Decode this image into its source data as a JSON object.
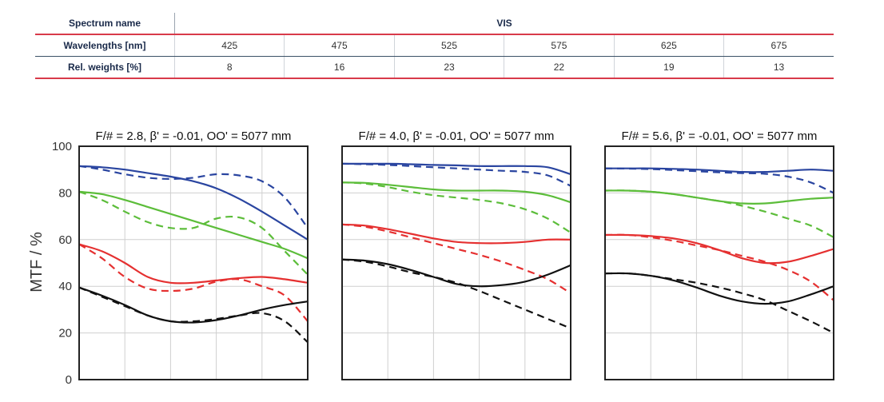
{
  "spectrum_table": {
    "spectrum_name_label": "Spectrum name",
    "spectrum_name_value": "VIS",
    "wavelengths_label": "Wavelengths [nm]",
    "wavelengths": [
      "425",
      "475",
      "525",
      "575",
      "625",
      "675"
    ],
    "weights_label": "Rel. weights [%]",
    "weights": [
      "8",
      "16",
      "23",
      "22",
      "19",
      "13"
    ]
  },
  "colors": {
    "blue": "#2a45a0",
    "green": "#5cbd3a",
    "red": "#e53030",
    "black": "#111111",
    "table_accent": "#d83a4a"
  },
  "chart_data": [
    {
      "type": "line",
      "title": "F/# = 2.8, β' = -0.01, OO' = 5077 mm",
      "ylabel": "MTF / %",
      "ylim": [
        0,
        100
      ],
      "yticks": [
        0,
        20,
        40,
        60,
        80,
        100
      ],
      "grid": true,
      "series": [
        {
          "color": "blue",
          "dash": false,
          "x": [
            0,
            0.1,
            0.2,
            0.3,
            0.4,
            0.5,
            0.6,
            0.7,
            0.8,
            0.9,
            1.0
          ],
          "y": [
            91.5,
            91,
            90,
            88.5,
            87,
            85,
            82,
            77.5,
            72,
            66,
            60
          ]
        },
        {
          "color": "blue",
          "dash": true,
          "x": [
            0,
            0.1,
            0.2,
            0.3,
            0.4,
            0.5,
            0.6,
            0.7,
            0.8,
            0.9,
            1.0
          ],
          "y": [
            91.5,
            90,
            88,
            86.5,
            86,
            86.5,
            88,
            87.5,
            85,
            78,
            65
          ]
        },
        {
          "color": "green",
          "dash": false,
          "x": [
            0,
            0.1,
            0.2,
            0.3,
            0.4,
            0.5,
            0.6,
            0.7,
            0.8,
            0.9,
            1.0
          ],
          "y": [
            80.5,
            79.5,
            77,
            74,
            71,
            68,
            65,
            62,
            59,
            56,
            52
          ]
        },
        {
          "color": "green",
          "dash": true,
          "x": [
            0,
            0.1,
            0.2,
            0.3,
            0.4,
            0.5,
            0.6,
            0.7,
            0.8,
            0.9,
            1.0
          ],
          "y": [
            80.5,
            77,
            72,
            67.5,
            65,
            65,
            69,
            69.5,
            65,
            55,
            45
          ]
        },
        {
          "color": "red",
          "dash": false,
          "x": [
            0,
            0.1,
            0.2,
            0.3,
            0.4,
            0.5,
            0.6,
            0.7,
            0.8,
            0.9,
            1.0
          ],
          "y": [
            58,
            55,
            50,
            44,
            41.5,
            41.5,
            42.5,
            43.5,
            44,
            43,
            41.5
          ]
        },
        {
          "color": "red",
          "dash": true,
          "x": [
            0,
            0.1,
            0.2,
            0.3,
            0.4,
            0.5,
            0.6,
            0.7,
            0.8,
            0.9,
            1.0
          ],
          "y": [
            58,
            52,
            44,
            39,
            38,
            39,
            42,
            43,
            40,
            36,
            25
          ]
        },
        {
          "color": "black",
          "dash": false,
          "x": [
            0,
            0.1,
            0.2,
            0.3,
            0.4,
            0.5,
            0.6,
            0.7,
            0.8,
            0.9,
            1.0
          ],
          "y": [
            39.5,
            36,
            32,
            27.5,
            25,
            24.5,
            25.5,
            27.5,
            30,
            32,
            33.5
          ]
        },
        {
          "color": "black",
          "dash": true,
          "x": [
            0,
            0.1,
            0.2,
            0.3,
            0.4,
            0.5,
            0.6,
            0.7,
            0.8,
            0.9,
            1.0
          ],
          "y": [
            39.5,
            35.5,
            31.5,
            27.5,
            25,
            25,
            26,
            27.5,
            28.5,
            25,
            16
          ]
        }
      ]
    },
    {
      "type": "line",
      "title": "F/# = 4.0, β' = -0.01, OO' = 5077 mm",
      "ylim": [
        0,
        100
      ],
      "grid": true,
      "series": [
        {
          "color": "blue",
          "dash": false,
          "x": [
            0,
            0.1,
            0.2,
            0.3,
            0.4,
            0.5,
            0.6,
            0.7,
            0.8,
            0.9,
            1.0
          ],
          "y": [
            92.5,
            92.5,
            92.5,
            92.3,
            92,
            91.8,
            91.5,
            91.5,
            91.5,
            91,
            88
          ]
        },
        {
          "color": "blue",
          "dash": true,
          "x": [
            0,
            0.1,
            0.2,
            0.3,
            0.4,
            0.5,
            0.6,
            0.7,
            0.8,
            0.9,
            1.0
          ],
          "y": [
            92.5,
            92.3,
            92,
            91.5,
            91,
            90.5,
            90,
            89.5,
            89,
            87.5,
            83
          ]
        },
        {
          "color": "green",
          "dash": false,
          "x": [
            0,
            0.1,
            0.2,
            0.3,
            0.4,
            0.5,
            0.6,
            0.7,
            0.8,
            0.9,
            1.0
          ],
          "y": [
            84.5,
            84.3,
            83.5,
            82.5,
            81.5,
            81,
            81,
            81,
            80.5,
            79,
            76
          ]
        },
        {
          "color": "green",
          "dash": true,
          "x": [
            0,
            0.1,
            0.2,
            0.3,
            0.4,
            0.5,
            0.6,
            0.7,
            0.8,
            0.9,
            1.0
          ],
          "y": [
            84.5,
            84,
            82.5,
            80.5,
            79,
            78,
            77,
            75.5,
            73,
            69,
            63
          ]
        },
        {
          "color": "red",
          "dash": false,
          "x": [
            0,
            0.1,
            0.2,
            0.3,
            0.4,
            0.5,
            0.6,
            0.7,
            0.8,
            0.9,
            1.0
          ],
          "y": [
            66.5,
            66,
            64.5,
            62.5,
            60.5,
            59,
            58.5,
            58.5,
            59,
            60,
            60
          ]
        },
        {
          "color": "red",
          "dash": true,
          "x": [
            0,
            0.1,
            0.2,
            0.3,
            0.4,
            0.5,
            0.6,
            0.7,
            0.8,
            0.9,
            1.0
          ],
          "y": [
            66.5,
            65.5,
            63.5,
            61,
            58.5,
            56,
            53.5,
            50.5,
            47,
            43,
            37
          ]
        },
        {
          "color": "black",
          "dash": false,
          "x": [
            0,
            0.1,
            0.2,
            0.3,
            0.4,
            0.5,
            0.6,
            0.7,
            0.8,
            0.9,
            1.0
          ],
          "y": [
            51.5,
            51,
            49.5,
            47,
            44,
            41,
            40,
            40.5,
            42,
            45,
            49
          ]
        },
        {
          "color": "black",
          "dash": true,
          "x": [
            0,
            0.1,
            0.2,
            0.3,
            0.4,
            0.5,
            0.6,
            0.7,
            0.8,
            0.9,
            1.0
          ],
          "y": [
            51.5,
            50.5,
            48.5,
            46,
            44,
            41.5,
            38,
            34,
            30,
            26,
            22
          ]
        }
      ]
    },
    {
      "type": "line",
      "title": "F/# = 5.6, β' = -0.01, OO' = 5077 mm",
      "ylim": [
        0,
        100
      ],
      "grid": true,
      "series": [
        {
          "color": "blue",
          "dash": false,
          "x": [
            0,
            0.1,
            0.2,
            0.3,
            0.4,
            0.5,
            0.6,
            0.7,
            0.8,
            0.9,
            1.0
          ],
          "y": [
            90.5,
            90.5,
            90.5,
            90.3,
            90,
            89.5,
            89,
            89,
            89.5,
            90,
            89.5
          ]
        },
        {
          "color": "blue",
          "dash": true,
          "x": [
            0,
            0.1,
            0.2,
            0.3,
            0.4,
            0.5,
            0.6,
            0.7,
            0.8,
            0.9,
            1.0
          ],
          "y": [
            90.5,
            90.4,
            90.2,
            89.8,
            89.3,
            88.8,
            88.5,
            88.2,
            87,
            84.5,
            80
          ]
        },
        {
          "color": "green",
          "dash": false,
          "x": [
            0,
            0.1,
            0.2,
            0.3,
            0.4,
            0.5,
            0.6,
            0.7,
            0.8,
            0.9,
            1.0
          ],
          "y": [
            81,
            81,
            80.5,
            79.5,
            78,
            76.5,
            75.5,
            75.5,
            76.5,
            77.5,
            78
          ]
        },
        {
          "color": "green",
          "dash": true,
          "x": [
            0,
            0.1,
            0.2,
            0.3,
            0.4,
            0.5,
            0.6,
            0.7,
            0.8,
            0.9,
            1.0
          ],
          "y": [
            81,
            81,
            80.5,
            79.5,
            78,
            76.5,
            74.5,
            72,
            69,
            66,
            61
          ]
        },
        {
          "color": "red",
          "dash": false,
          "x": [
            0,
            0.1,
            0.2,
            0.3,
            0.4,
            0.5,
            0.6,
            0.7,
            0.8,
            0.9,
            1.0
          ],
          "y": [
            62,
            62,
            61.5,
            60.5,
            58.5,
            55.5,
            52,
            50,
            50.5,
            53,
            56
          ]
        },
        {
          "color": "red",
          "dash": true,
          "x": [
            0,
            0.1,
            0.2,
            0.3,
            0.4,
            0.5,
            0.6,
            0.7,
            0.8,
            0.9,
            1.0
          ],
          "y": [
            62,
            62,
            61,
            59.5,
            57.5,
            55.5,
            53,
            50.5,
            47,
            42,
            34
          ]
        },
        {
          "color": "black",
          "dash": false,
          "x": [
            0,
            0.1,
            0.2,
            0.3,
            0.4,
            0.5,
            0.6,
            0.7,
            0.8,
            0.9,
            1.0
          ],
          "y": [
            45.5,
            45.5,
            44.5,
            42.5,
            39.5,
            36,
            33.5,
            32.5,
            33.5,
            36.5,
            40
          ]
        },
        {
          "color": "black",
          "dash": true,
          "x": [
            0,
            0.1,
            0.2,
            0.3,
            0.4,
            0.5,
            0.6,
            0.7,
            0.8,
            0.9,
            1.0
          ],
          "y": [
            45.5,
            45.5,
            44.5,
            43,
            41.5,
            39.5,
            37,
            34,
            29.5,
            25,
            20
          ]
        }
      ]
    }
  ]
}
